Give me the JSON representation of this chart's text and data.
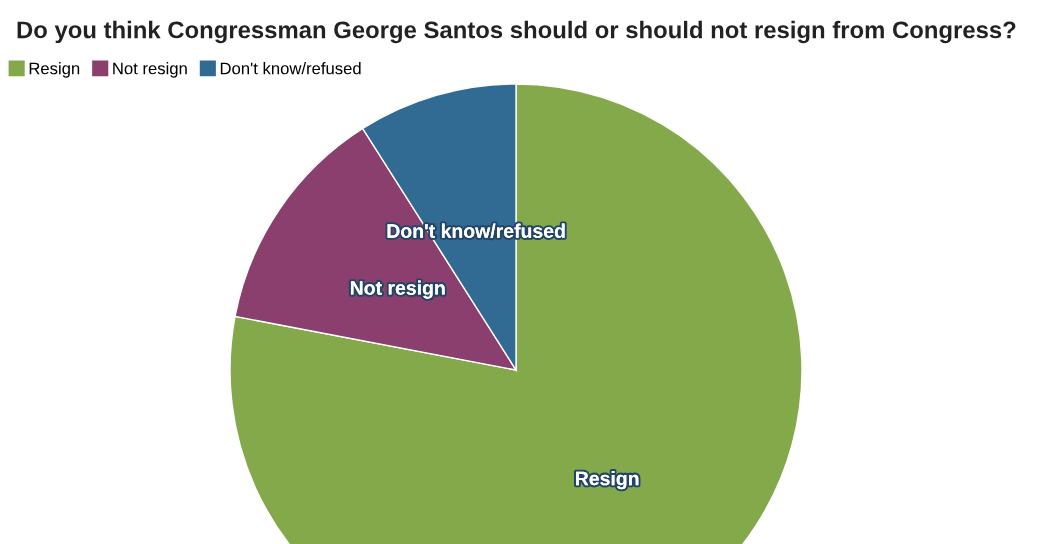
{
  "chart_data": {
    "type": "pie",
    "title": "Do you think Congressman George Santos should or should not resign from Congress?",
    "categories": [
      "Resign",
      "Not resign",
      "Don't know/refused"
    ],
    "values": [
      78,
      13,
      9
    ],
    "colors": [
      "#84a94b",
      "#8a3f6e",
      "#316b94"
    ],
    "legend": "top left"
  }
}
